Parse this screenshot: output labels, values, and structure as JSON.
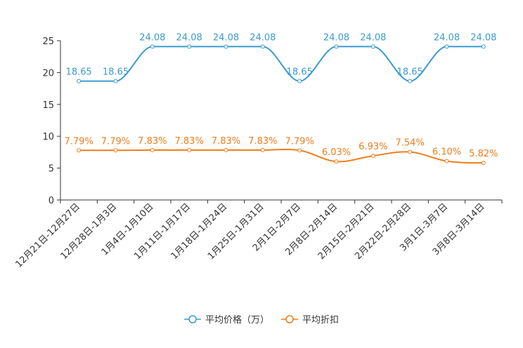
{
  "chart_data": {
    "type": "line",
    "title": "",
    "xlabel": "",
    "ylabel": "",
    "ylim": [
      0,
      25
    ],
    "yticks": [
      0,
      5,
      10,
      15,
      20,
      25
    ],
    "grid": false,
    "legend_position": "bottom-center",
    "categories": [
      "12月21日-12月27日",
      "12月28日-1月3日",
      "1月4日-1月10日",
      "1月11日-1月17日",
      "1月18日-1月24日",
      "1月25日-1月31日",
      "2月1日-2月7日",
      "2月8日-2月14日",
      "2月15日-2月21日",
      "2月22日-2月28日",
      "3月1日-3月7日",
      "3月8日-3月14日"
    ],
    "series": [
      {
        "name": "平均价格（万）",
        "color": "#3a9bd0",
        "values": [
          18.65,
          18.65,
          24.08,
          24.08,
          24.08,
          24.08,
          18.65,
          24.08,
          24.08,
          18.65,
          24.08,
          24.08
        ],
        "labels": [
          "18.65",
          "18.65",
          "24.08",
          "24.08",
          "24.08",
          "24.08",
          "18.65",
          "24.08",
          "24.08",
          "18.65",
          "24.08",
          "24.08"
        ]
      },
      {
        "name": "平均折扣",
        "color": "#f07c1b",
        "values": [
          7.79,
          7.79,
          7.83,
          7.83,
          7.83,
          7.83,
          7.79,
          6.03,
          6.93,
          7.54,
          6.1,
          5.82
        ],
        "labels": [
          "7.79%",
          "7.79%",
          "7.83%",
          "7.83%",
          "7.83%",
          "7.83%",
          "7.79%",
          "6.03%",
          "6.93%",
          "7.54%",
          "6.10%",
          "5.82%"
        ]
      }
    ]
  }
}
